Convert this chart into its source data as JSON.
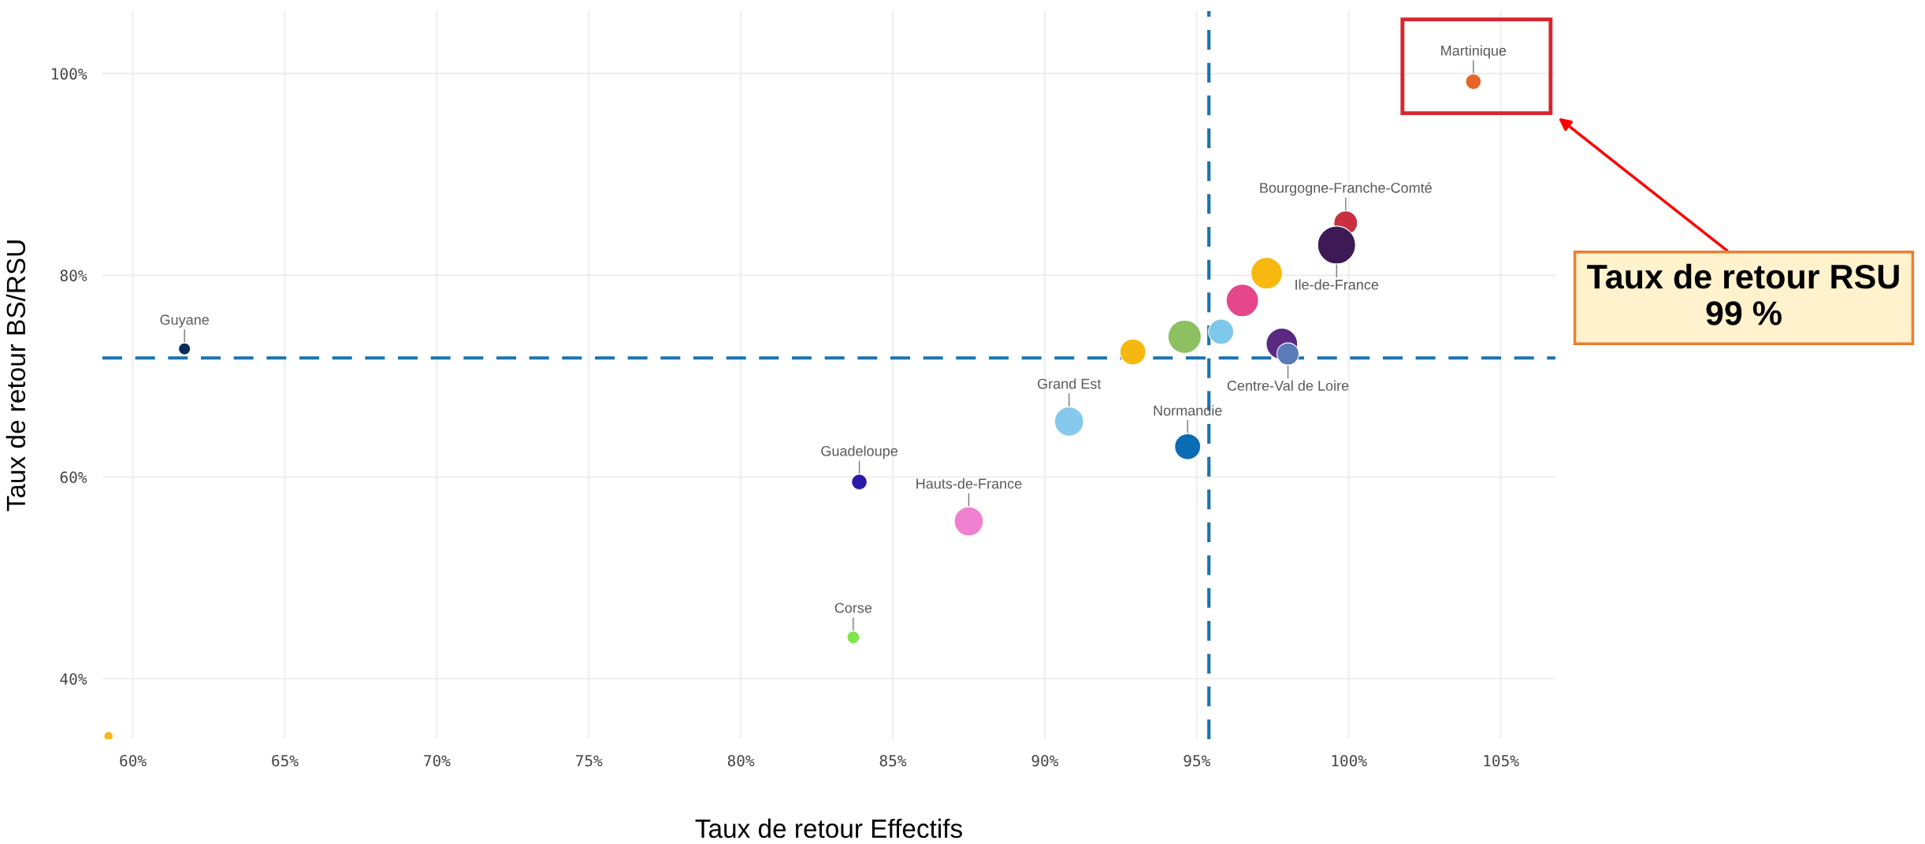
{
  "chart_data": {
    "type": "bubble",
    "xlabel": "Taux de retour Effectifs",
    "ylabel": "Taux de retour BS/RSU",
    "x": [
      61.7,
      59.2,
      104.1,
      99.9,
      99.6,
      97.3,
      96.5,
      95.8,
      94.6,
      92.9,
      97.8,
      98.0,
      90.8,
      94.7,
      83.9,
      87.5,
      83.7
    ],
    "values": [
      72.7,
      34.3,
      99.2,
      85.2,
      83.0,
      80.2,
      77.5,
      74.4,
      73.9,
      72.4,
      73.2,
      72.2,
      65.5,
      63.0,
      59.5,
      55.6,
      44.1
    ],
    "sizes": [
      0.1,
      0.06,
      0.17,
      0.39,
      1.0,
      0.69,
      0.73,
      0.44,
      0.77,
      0.47,
      0.69,
      0.34,
      0.59,
      0.47,
      0.17,
      0.59,
      0.11
    ],
    "colors": [
      "#0b2d5b",
      "#f4b81c",
      "#e8642b",
      "#c8303f",
      "#3d1a56",
      "#f7b90f",
      "#e5478a",
      "#7ec8ea",
      "#8cc061",
      "#f5b80f",
      "#5a2a82",
      "#5a7ab8",
      "#86c9ec",
      "#0a6cb3",
      "#2a1aa8",
      "#f080d0",
      "#7fe54a"
    ],
    "xlim": [
      59,
      106.8
    ],
    "ylim": [
      34,
      106.2
    ],
    "xticks": [
      {
        "value": 60,
        "label": "60%"
      },
      {
        "value": 65,
        "label": "65%"
      },
      {
        "value": 70,
        "label": "70%"
      },
      {
        "value": 75,
        "label": "75%"
      },
      {
        "value": 80,
        "label": "80%"
      },
      {
        "value": 85,
        "label": "85%"
      },
      {
        "value": 90,
        "label": "90%"
      },
      {
        "value": 95,
        "label": "95%"
      },
      {
        "value": 100,
        "label": "100%"
      },
      {
        "value": 105,
        "label": "105%"
      }
    ],
    "yticks": [
      {
        "value": 40,
        "label": "40%"
      },
      {
        "value": 60,
        "label": "60%"
      },
      {
        "value": 80,
        "label": "80%"
      },
      {
        "value": 100,
        "label": "100%"
      }
    ],
    "grid": true,
    "legend": false,
    "ref_lines": [
      {
        "axis": "y",
        "value": 71.8,
        "color": "#1a73b0",
        "line_style": "dashed"
      },
      {
        "axis": "x",
        "value": 95.4,
        "color": "#1a73b0",
        "line_style": "dashed"
      }
    ],
    "annotations": [
      {
        "text": "Guyane",
        "x": 61.7,
        "y": 72.7
      },
      {
        "text": "Martinique",
        "x": 104.1,
        "y": 99.2
      },
      {
        "text": "Bourgogne-Franche-Comté",
        "x": 99.9,
        "y": 85.2
      },
      {
        "text": "Ile-de-France",
        "x": 99.6,
        "y": 83.0
      },
      {
        "text": "Centre-Val de Loire",
        "x": 98.0,
        "y": 72.2
      },
      {
        "text": "Grand Est",
        "x": 90.8,
        "y": 65.5
      },
      {
        "text": "Normandie",
        "x": 94.7,
        "y": 63.0
      },
      {
        "text": "Guadeloupe",
        "x": 83.9,
        "y": 59.5
      },
      {
        "text": "Hauts-de-France",
        "x": 87.5,
        "y": 55.6
      },
      {
        "text": "Corse",
        "x": 83.7,
        "y": 44.1
      },
      "Taux de retour RSU\n99 %"
    ]
  }
}
